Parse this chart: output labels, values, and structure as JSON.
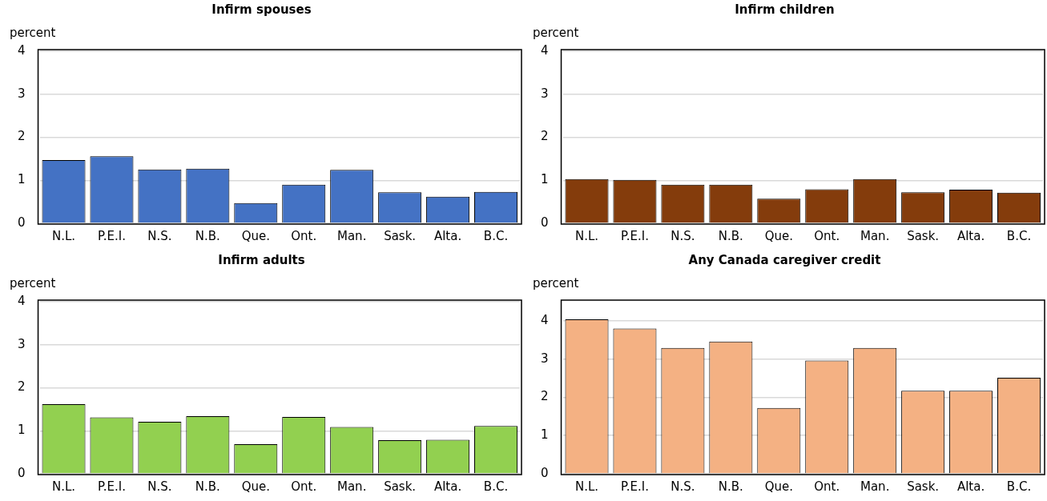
{
  "chart_data": [
    {
      "type": "bar",
      "title": "Infirm spouses",
      "ylabel": "percent",
      "categories": [
        "N.L.",
        "P.E.I.",
        "N.S.",
        "N.B.",
        "Que.",
        "Ont.",
        "Man.",
        "Sask.",
        "Alta.",
        "B.C."
      ],
      "values": [
        1.47,
        1.56,
        1.25,
        1.27,
        0.47,
        0.9,
        1.24,
        0.72,
        0.62,
        0.73
      ],
      "color": "#4472c4",
      "ylim": [
        0,
        4
      ],
      "yticks": [
        0,
        1,
        2,
        3,
        4
      ],
      "grid": "y"
    },
    {
      "type": "bar",
      "title": "Infirm children",
      "ylabel": "percent",
      "categories": [
        "N.L.",
        "P.E.I.",
        "N.S.",
        "N.B.",
        "Que.",
        "Ont.",
        "Man.",
        "Sask.",
        "Alta.",
        "B.C."
      ],
      "values": [
        1.03,
        1.01,
        0.9,
        0.9,
        0.57,
        0.79,
        1.03,
        0.72,
        0.78,
        0.71
      ],
      "color": "#843c0c",
      "ylim": [
        0,
        4
      ],
      "yticks": [
        0,
        1,
        2,
        3,
        4
      ],
      "grid": "y"
    },
    {
      "type": "bar",
      "title": "Infirm adults",
      "ylabel": "percent",
      "categories": [
        "N.L.",
        "P.E.I.",
        "N.S.",
        "N.B.",
        "Que.",
        "Ont.",
        "Man.",
        "Sask.",
        "Alta.",
        "B.C."
      ],
      "values": [
        1.62,
        1.31,
        1.21,
        1.34,
        0.69,
        1.32,
        1.09,
        0.78,
        0.79,
        1.11
      ],
      "color": "#92d050",
      "ylim": [
        0,
        4
      ],
      "yticks": [
        0,
        1,
        2,
        3,
        4
      ],
      "grid": "y"
    },
    {
      "type": "bar",
      "title": "Any Canada caregiver credit",
      "ylabel": "percent",
      "categories": [
        "N.L.",
        "P.E.I.",
        "N.S.",
        "N.B.",
        "Que.",
        "Ont.",
        "Man.",
        "Sask.",
        "Alta.",
        "B.C."
      ],
      "values": [
        4.04,
        3.8,
        3.29,
        3.46,
        1.72,
        2.96,
        3.29,
        2.17,
        2.17,
        2.51
      ],
      "color": "#f4b183",
      "ylim": [
        0,
        4.5
      ],
      "yticks": [
        0,
        1,
        2,
        3,
        4
      ],
      "grid": "y"
    }
  ]
}
